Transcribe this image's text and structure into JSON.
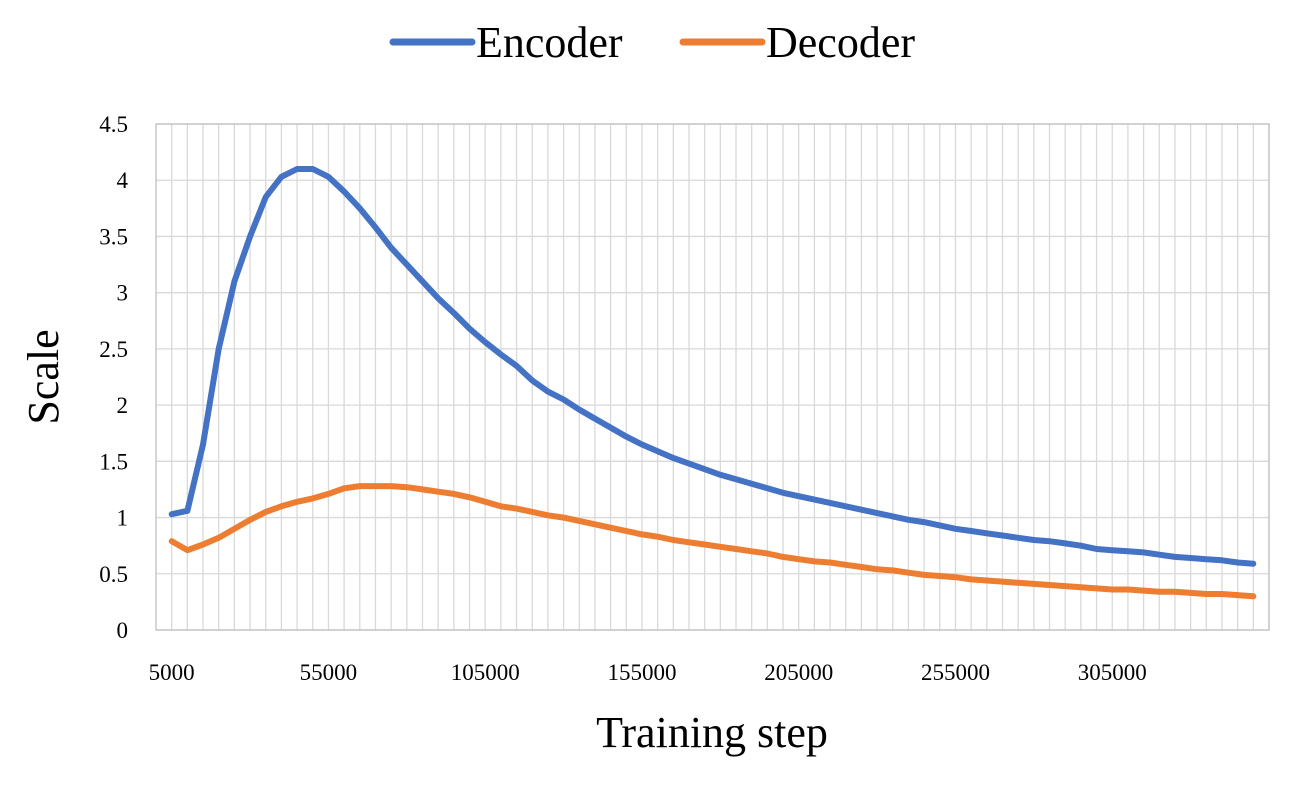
{
  "chart_data": {
    "type": "line",
    "xlabel": "Training step",
    "ylabel": "Scale",
    "xlim": [
      5000,
      355000
    ],
    "ylim": [
      0,
      4.5
    ],
    "x_ticks": [
      "5000",
      "55000",
      "105000",
      "155000",
      "205000",
      "255000",
      "305000"
    ],
    "y_ticks": [
      "0",
      "0.5",
      "1",
      "1.5",
      "2",
      "2.5",
      "3",
      "3.5",
      "4",
      "4.5"
    ],
    "grid": true,
    "legend_position": "top-center",
    "x": [
      5000,
      10000,
      15000,
      20000,
      25000,
      30000,
      35000,
      40000,
      45000,
      50000,
      55000,
      60000,
      65000,
      70000,
      75000,
      80000,
      85000,
      90000,
      95000,
      100000,
      105000,
      110000,
      115000,
      120000,
      125000,
      130000,
      135000,
      140000,
      145000,
      150000,
      155000,
      160000,
      165000,
      170000,
      175000,
      180000,
      185000,
      190000,
      195000,
      200000,
      205000,
      210000,
      215000,
      220000,
      225000,
      230000,
      235000,
      240000,
      245000,
      250000,
      255000,
      260000,
      265000,
      270000,
      275000,
      280000,
      285000,
      290000,
      295000,
      300000,
      305000,
      310000,
      315000,
      320000,
      325000,
      330000,
      335000,
      340000,
      345000,
      350000
    ],
    "series": [
      {
        "name": "Encoder",
        "color": "#4472c4",
        "values": [
          1.03,
          1.06,
          1.65,
          2.5,
          3.1,
          3.5,
          3.85,
          4.03,
          4.1,
          4.1,
          4.03,
          3.9,
          3.75,
          3.58,
          3.4,
          3.25,
          3.1,
          2.95,
          2.82,
          2.68,
          2.56,
          2.45,
          2.35,
          2.22,
          2.12,
          2.05,
          1.96,
          1.88,
          1.8,
          1.72,
          1.65,
          1.59,
          1.53,
          1.48,
          1.43,
          1.38,
          1.34,
          1.3,
          1.26,
          1.22,
          1.19,
          1.16,
          1.13,
          1.1,
          1.07,
          1.04,
          1.01,
          0.98,
          0.96,
          0.93,
          0.9,
          0.88,
          0.86,
          0.84,
          0.82,
          0.8,
          0.79,
          0.77,
          0.75,
          0.72,
          0.71,
          0.7,
          0.69,
          0.67,
          0.65,
          0.64,
          0.63,
          0.62,
          0.6,
          0.59
        ]
      },
      {
        "name": "Decoder",
        "color": "#ed7d31",
        "values": [
          0.79,
          0.71,
          0.76,
          0.82,
          0.9,
          0.98,
          1.05,
          1.1,
          1.14,
          1.17,
          1.21,
          1.26,
          1.28,
          1.28,
          1.28,
          1.27,
          1.25,
          1.23,
          1.21,
          1.18,
          1.14,
          1.1,
          1.08,
          1.05,
          1.02,
          1.0,
          0.97,
          0.94,
          0.91,
          0.88,
          0.85,
          0.83,
          0.8,
          0.78,
          0.76,
          0.74,
          0.72,
          0.7,
          0.68,
          0.65,
          0.63,
          0.61,
          0.6,
          0.58,
          0.56,
          0.54,
          0.53,
          0.51,
          0.49,
          0.48,
          0.47,
          0.45,
          0.44,
          0.43,
          0.42,
          0.41,
          0.4,
          0.39,
          0.38,
          0.37,
          0.36,
          0.36,
          0.35,
          0.34,
          0.34,
          0.33,
          0.32,
          0.32,
          0.31,
          0.3
        ]
      }
    ]
  }
}
